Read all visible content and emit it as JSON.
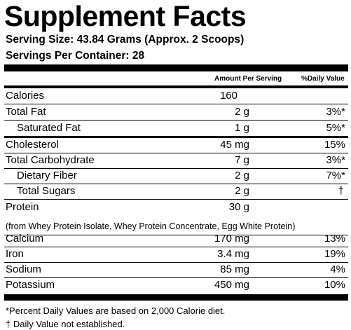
{
  "title": "Supplement Facts",
  "serving_size": "Serving Size: 43.84 Grams (Approx. 2 Scoops)",
  "servings_per_container": "Servings Per Container: 28",
  "column_headers": {
    "amount": "Amount Per Serving",
    "daily_value": "%Daily Value"
  },
  "nutrients": [
    {
      "label": "Calories",
      "amount": "160",
      "dv": ""
    },
    {
      "label": "Total Fat",
      "amount": "2 g",
      "dv": "3%*"
    },
    {
      "label": "Saturated Fat",
      "amount": "1 g",
      "dv": "5%*"
    },
    {
      "label": "Cholesterol",
      "amount": "45 mg",
      "dv": "15%"
    },
    {
      "label": "Total Carbohydrate",
      "amount": "7 g",
      "dv": "3%*"
    },
    {
      "label": "Dietary Fiber",
      "amount": "2 g",
      "dv": "7%*"
    },
    {
      "label": "Total Sugars",
      "amount": "2 g",
      "dv": "†"
    },
    {
      "label": "Protein",
      "amount": "30 g",
      "dv": ""
    }
  ],
  "protein_note": "(from Whey Protein Isolate, Whey Protein Concentrate, Egg White Protein)",
  "minerals": [
    {
      "label": "Calcium",
      "amount": "170 mg",
      "dv": "13%"
    },
    {
      "label": "Iron",
      "amount": "3.4 mg",
      "dv": "19%"
    },
    {
      "label": "Sodium",
      "amount": "85 mg",
      "dv": "4%"
    },
    {
      "label": "Potassium",
      "amount": "450 mg",
      "dv": "10%"
    }
  ],
  "footnotes": [
    "*Percent Daily Values are based on 2,000 Calorie diet.",
    "† Daily Value not established."
  ]
}
